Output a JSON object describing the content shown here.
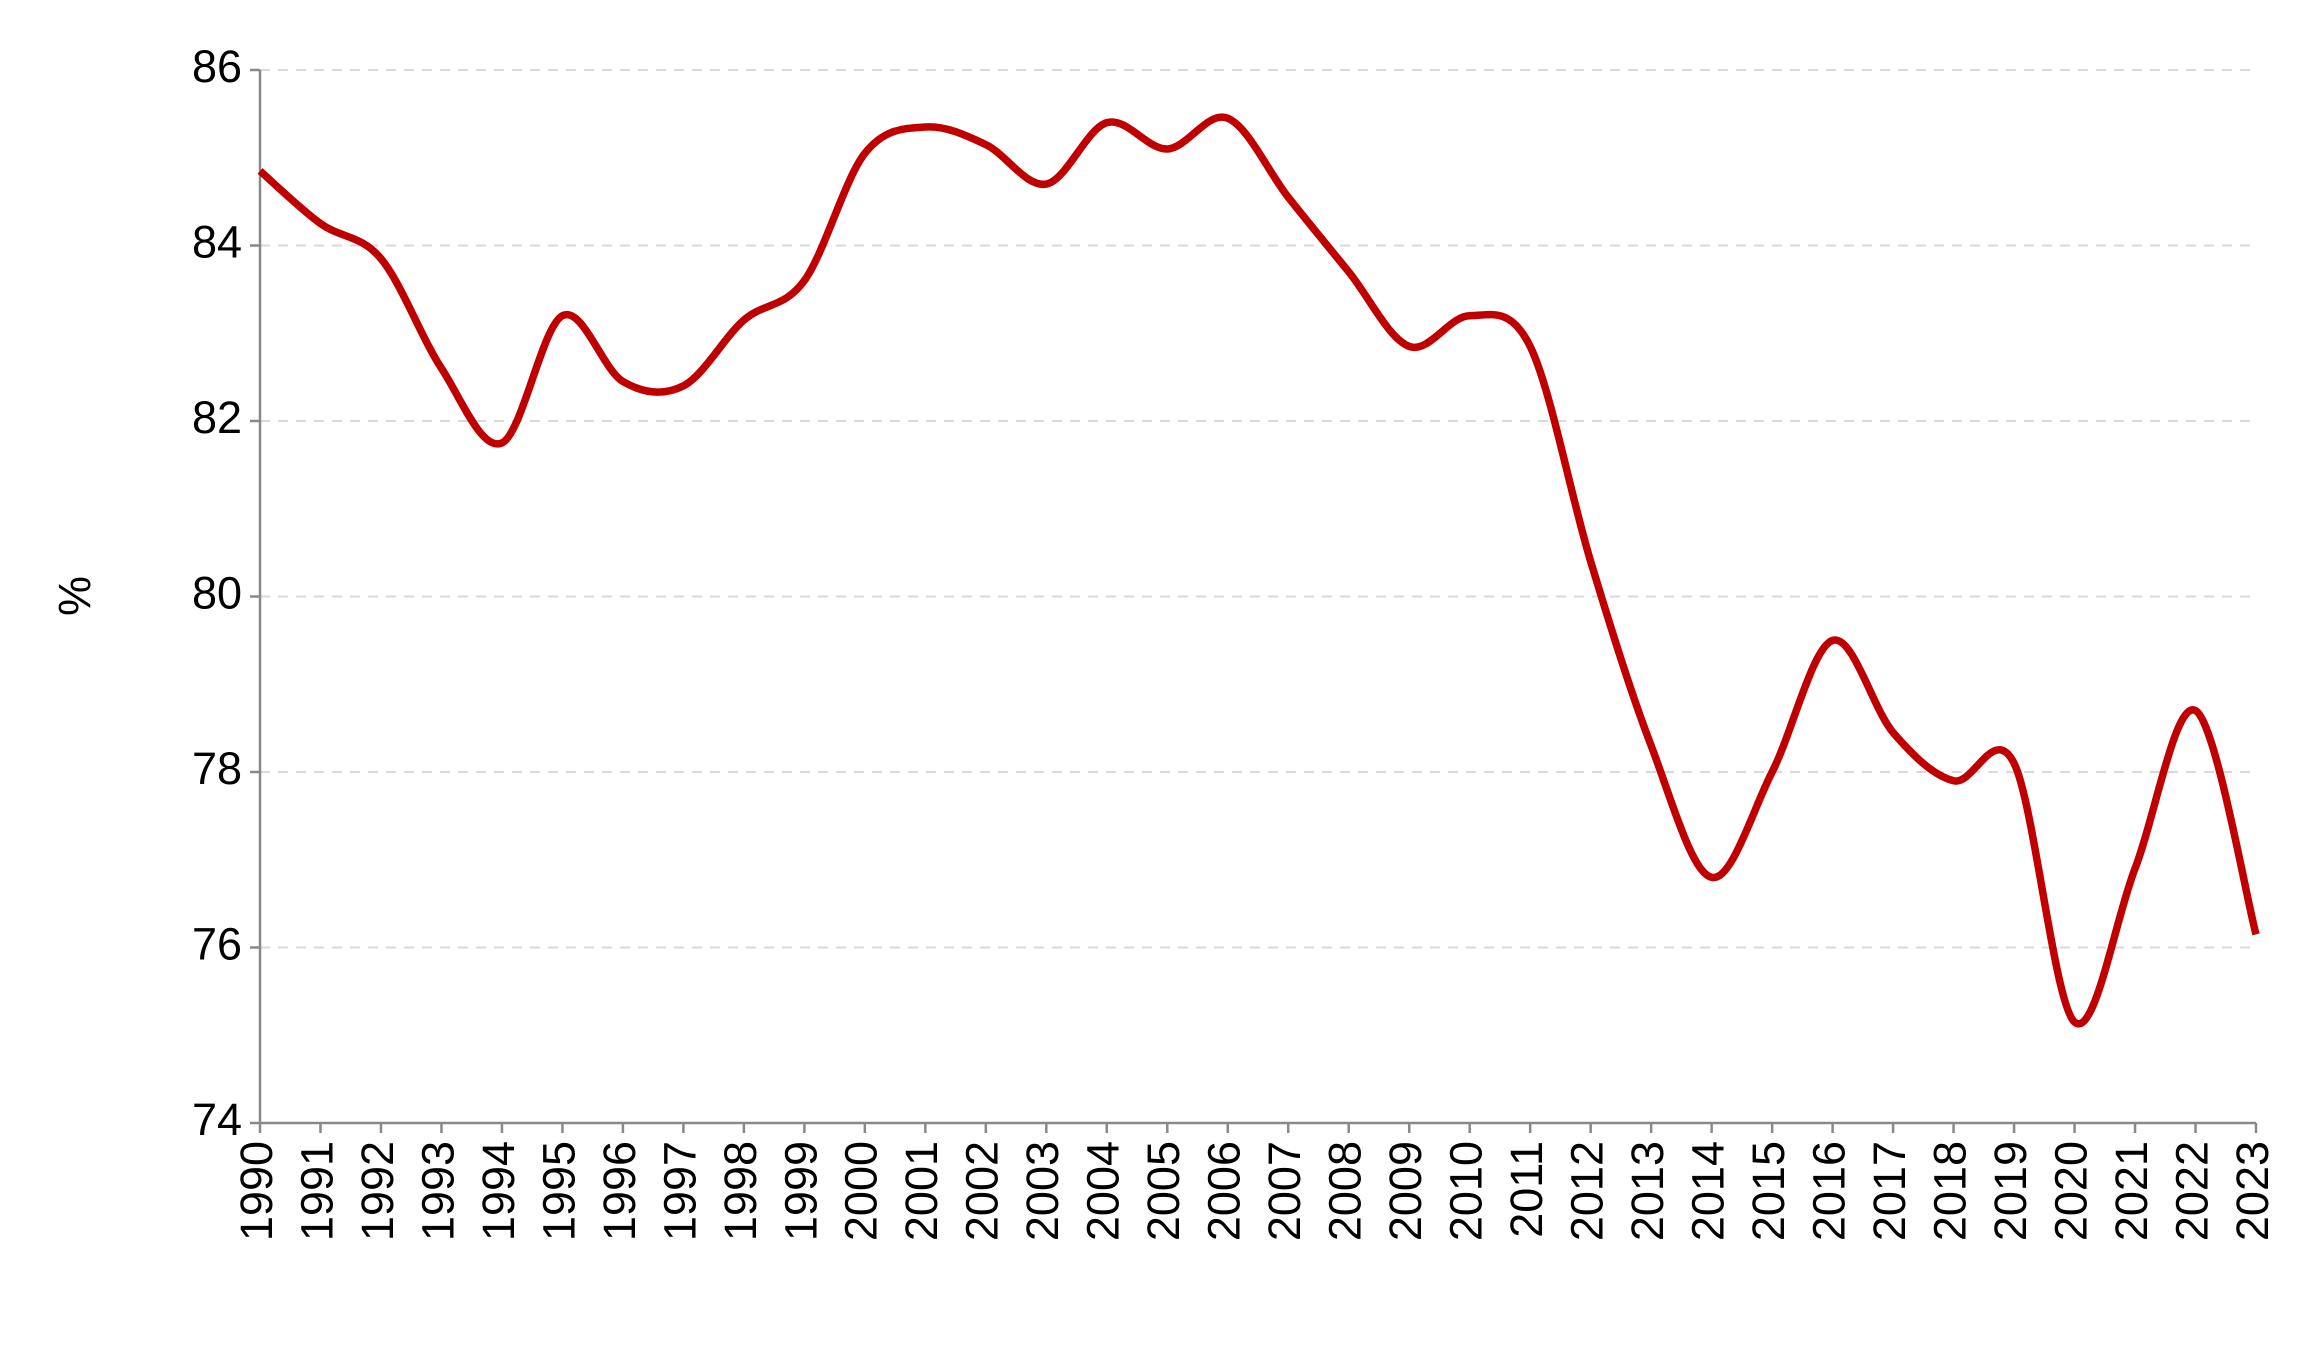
{
  "chart_data": {
    "type": "line",
    "y_label": "%",
    "categories": [
      "1990",
      "1991",
      "1992",
      "1993",
      "1994",
      "1995",
      "1996",
      "1997",
      "1998",
      "1999",
      "2000",
      "2001",
      "2002",
      "2003",
      "2004",
      "2005",
      "2006",
      "2007",
      "2008",
      "2009",
      "2010",
      "2011",
      "2012",
      "2013",
      "2014",
      "2015",
      "2016",
      "2017",
      "2018",
      "2019",
      "2020",
      "2021",
      "2022",
      "2023"
    ],
    "series": [
      {
        "color": "#c00000",
        "values": [
          84.85,
          84.25,
          83.85,
          82.6,
          81.75,
          83.2,
          82.45,
          82.4,
          83.15,
          83.6,
          85.05,
          85.35,
          85.15,
          84.7,
          85.4,
          85.1,
          85.45,
          84.55,
          83.7,
          82.85,
          83.2,
          82.85,
          80.4,
          78.3,
          76.8,
          78.0,
          79.5,
          78.45,
          77.9,
          78.1,
          75.15,
          76.9,
          78.7,
          76.15
        ]
      }
    ],
    "ylim": [
      74,
      86
    ],
    "yticks": [
      74,
      76,
      78,
      80,
      82,
      84,
      86
    ],
    "grid": true,
    "smooth": true
  }
}
